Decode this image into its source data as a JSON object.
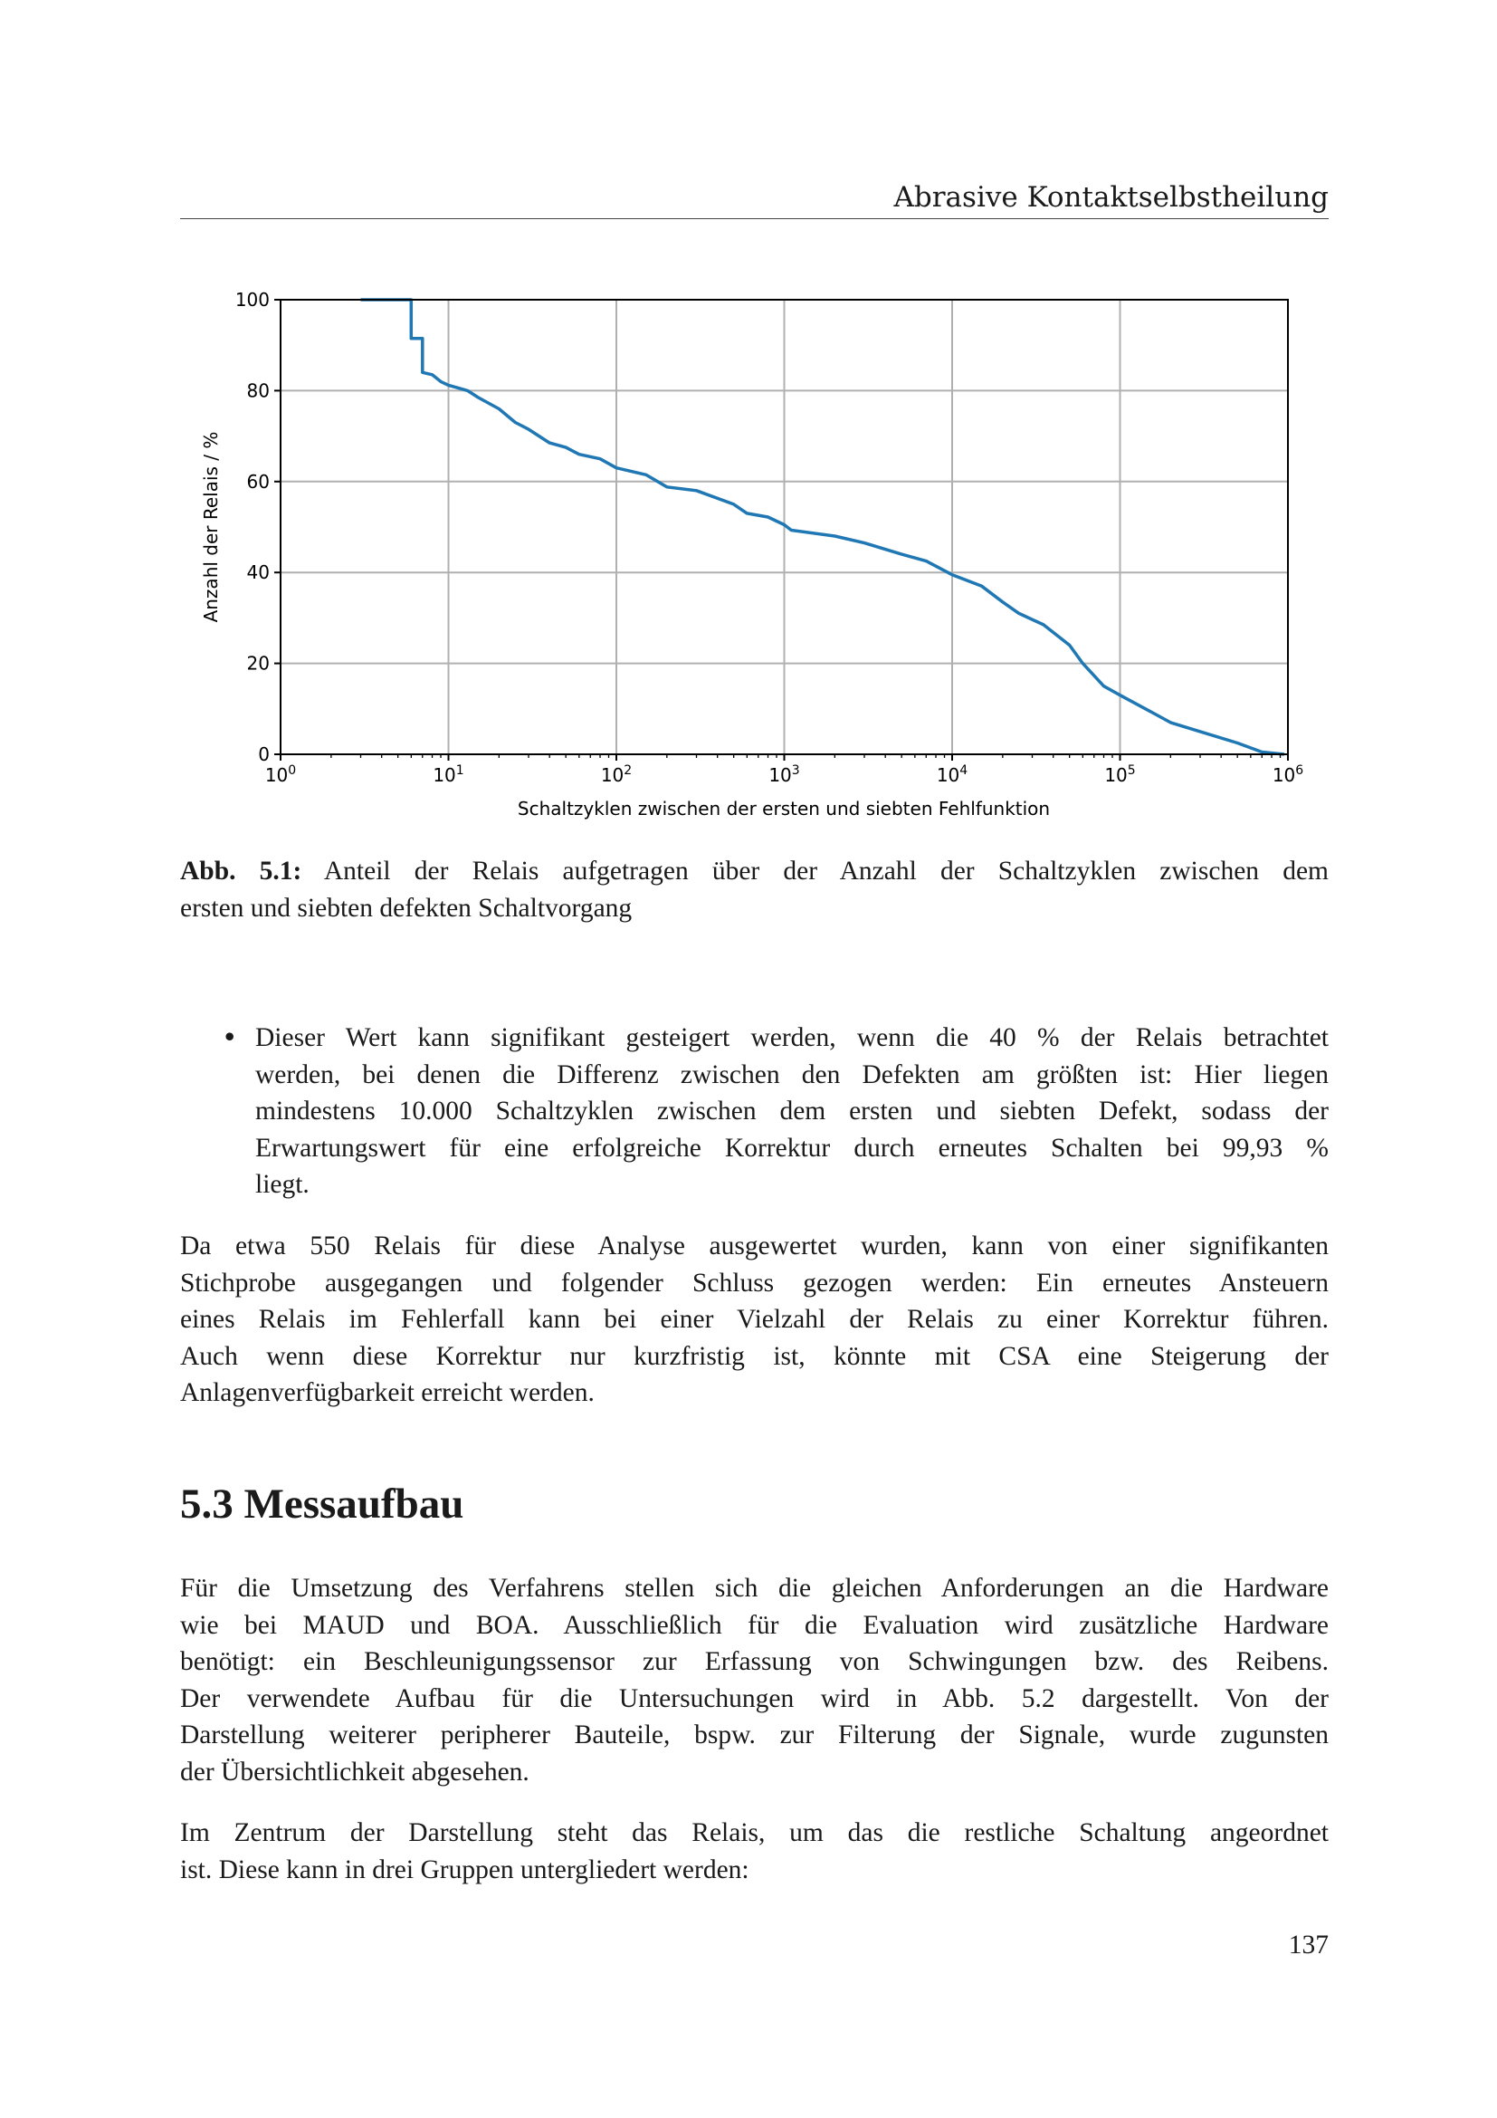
{
  "header": {
    "running_title": "Abrasive Kontaktselbstheilung"
  },
  "chart_data": {
    "type": "line",
    "title": "",
    "xlabel": "Schaltzyklen zwischen der ersten und siebten Fehlfunktion",
    "ylabel": "Anzahl der Relais / %",
    "xscale": "log",
    "xlim": [
      1,
      1000000
    ],
    "ylim": [
      0,
      100
    ],
    "grid": true,
    "line_color": "#1f77b4",
    "x_tick_labels": [
      {
        "base": "10",
        "exp": "0"
      },
      {
        "base": "10",
        "exp": "1"
      },
      {
        "base": "10",
        "exp": "2"
      },
      {
        "base": "10",
        "exp": "3"
      },
      {
        "base": "10",
        "exp": "4"
      },
      {
        "base": "10",
        "exp": "5"
      },
      {
        "base": "10",
        "exp": "6"
      }
    ],
    "y_tick_labels": [
      "0",
      "20",
      "40",
      "60",
      "80",
      "100"
    ],
    "y_ticks": [
      0,
      20,
      40,
      60,
      80,
      100
    ],
    "series": [
      {
        "x": [
          3,
          6,
          6,
          7,
          7,
          8,
          9,
          10,
          13,
          15,
          20,
          25,
          30,
          40,
          50,
          60,
          80,
          100,
          150,
          200,
          300,
          500,
          600,
          800,
          1000,
          1100,
          2000,
          3000,
          5000,
          7000,
          10000,
          15000,
          20000,
          25000,
          35000,
          50000,
          60000,
          80000,
          100000,
          150000,
          200000,
          300000,
          500000,
          700000,
          950000
        ],
        "y": [
          100,
          100,
          91.5,
          91.5,
          84,
          83.5,
          82,
          81.2,
          80,
          78.5,
          76,
          73,
          71.5,
          68.5,
          67.5,
          66,
          65,
          63,
          61.5,
          58.8,
          58,
          55,
          53,
          52.2,
          50.5,
          49.3,
          48,
          46.5,
          44,
          42.5,
          39.5,
          37,
          33.5,
          31,
          28.5,
          24,
          20,
          15,
          13,
          9.5,
          7,
          5,
          2.5,
          0.5,
          0
        ]
      }
    ]
  },
  "caption": {
    "label": "Abb. 5.1:",
    "lines": [
      "Anteil der Relais aufgetragen über der Anzahl der Schaltzyklen zwischen dem",
      "ersten und siebten defekten Schaltvorgang"
    ]
  },
  "bullet": {
    "marker": "•",
    "lines": [
      "Dieser Wert kann signifikant gesteigert werden, wenn die 40 % der Relais betrachtet",
      "werden, bei denen die Differenz zwischen den Defekten am größten ist: Hier liegen",
      "mindestens 10.000 Schaltzyklen zwischen dem ersten und siebten Defekt, sodass der",
      "Erwartungswert für eine erfolgreiche Korrektur durch erneutes Schalten bei 99,93 %",
      "liegt."
    ]
  },
  "para1": {
    "lines": [
      "Da etwa 550 Relais für diese Analyse ausgewertet wurden, kann von einer signifikanten",
      "Stichprobe ausgegangen und folgender Schluss gezogen werden: Ein erneutes Ansteuern",
      "eines Relais im Fehlerfall kann bei einer Vielzahl der Relais zu einer Korrektur führen.",
      "Auch wenn diese Korrektur nur kurzfristig ist, könnte mit CSA eine Steigerung der",
      "Anlagenverfügbarkeit erreicht werden."
    ]
  },
  "section": {
    "heading": "5.3 Messaufbau"
  },
  "para2": {
    "lines": [
      "Für die Umsetzung des Verfahrens stellen sich die gleichen Anforderungen an die Hardware",
      "wie bei MAUD und BOA. Ausschließlich für die Evaluation wird zusätzliche Hardware",
      "benötigt: ein Beschleunigungssensor zur Erfassung von Schwingungen bzw. des Reibens.",
      "Der verwendete Aufbau für die Untersuchungen wird in Abb. 5.2 dargestellt. Von der",
      "Darstellung weiterer peripherer Bauteile, bspw. zur Filterung der Signale, wurde zugunsten",
      "der Übersichtlichkeit abgesehen."
    ]
  },
  "para3": {
    "lines": [
      "Im Zentrum der Darstellung steht das Relais, um das die restliche Schaltung angeordnet",
      "ist. Diese kann in drei Gruppen untergliedert werden:"
    ]
  },
  "page_number": "137"
}
